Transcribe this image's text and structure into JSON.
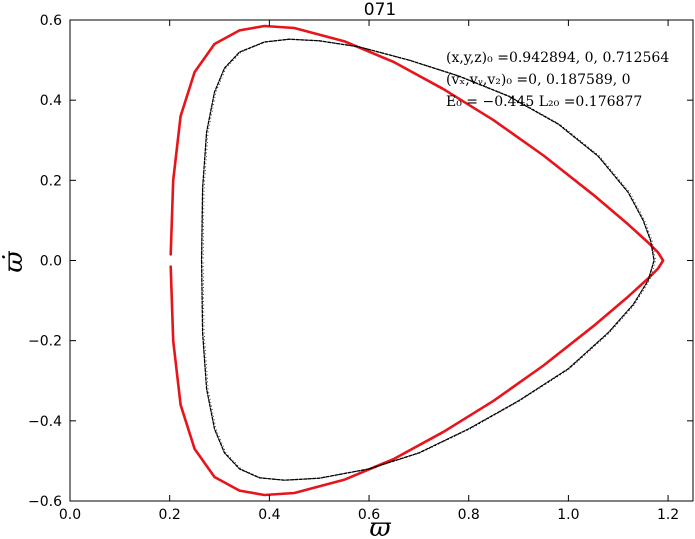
{
  "chart_data": {
    "type": "line",
    "title": "071",
    "xlabel": "ϖ",
    "ylabel": "ϖ̇",
    "xlim": [
      0.0,
      1.25
    ],
    "ylim": [
      -0.6,
      0.6
    ],
    "xticks": [
      0.0,
      0.2,
      0.4,
      0.6,
      0.8,
      1.0,
      1.2
    ],
    "xtick_labels": [
      "0.0",
      "0.2",
      "0.4",
      "0.6",
      "0.8",
      "1.0",
      "1.2"
    ],
    "yticks": [
      -0.6,
      -0.4,
      -0.2,
      0.0,
      0.2,
      0.4,
      0.6
    ],
    "ytick_labels": [
      "−0.6",
      "−0.4",
      "−0.2",
      "0.0",
      "0.2",
      "0.4",
      "0.6"
    ],
    "grid": false,
    "annotations": [
      "(x,y,z)₀ =0.942894, 0, 0.712564",
      "(vₓ,vᵧ,v₂)₀ =0, 0.187589, 0",
      "E₀ = −0.445  L₂₀ =0.176877"
    ],
    "series": [
      {
        "color": "#e8141b",
        "style": "solid-thick",
        "x": [
          0.202,
          0.207,
          0.222,
          0.25,
          0.29,
          0.34,
          0.39,
          0.45,
          0.55,
          0.65,
          0.75,
          0.85,
          0.95,
          1.05,
          1.12,
          1.16,
          1.18,
          1.19,
          1.18,
          1.16,
          1.12,
          1.05,
          0.95,
          0.85,
          0.75,
          0.65,
          0.55,
          0.45,
          0.39,
          0.34,
          0.29,
          0.25,
          0.222,
          0.207,
          0.202
        ],
        "y": [
          -0.015,
          -0.2,
          -0.36,
          -0.47,
          -0.54,
          -0.574,
          -0.585,
          -0.58,
          -0.547,
          -0.495,
          -0.427,
          -0.35,
          -0.262,
          -0.164,
          -0.09,
          -0.045,
          -0.02,
          0.0,
          0.02,
          0.045,
          0.09,
          0.164,
          0.262,
          0.35,
          0.427,
          0.495,
          0.547,
          0.58,
          0.585,
          0.574,
          0.54,
          0.47,
          0.36,
          0.2,
          0.015
        ]
      },
      {
        "color": "#000000",
        "style": "dotted-orbit",
        "x": [
          0.264,
          0.266,
          0.274,
          0.29,
          0.31,
          0.34,
          0.38,
          0.43,
          0.5,
          0.6,
          0.7,
          0.8,
          0.9,
          1.0,
          1.08,
          1.13,
          1.16,
          1.172,
          1.165,
          1.15,
          1.12,
          1.06,
          0.98,
          0.88,
          0.78,
          0.68,
          0.58,
          0.5,
          0.44,
          0.39,
          0.34,
          0.31,
          0.29,
          0.274,
          0.266,
          0.264
        ],
        "y": [
          0.0,
          -0.18,
          -0.32,
          -0.42,
          -0.48,
          -0.52,
          -0.542,
          -0.548,
          -0.543,
          -0.52,
          -0.48,
          -0.42,
          -0.35,
          -0.27,
          -0.18,
          -0.11,
          -0.05,
          0.0,
          0.05,
          0.1,
          0.17,
          0.26,
          0.34,
          0.41,
          0.46,
          0.5,
          0.533,
          0.548,
          0.552,
          0.545,
          0.52,
          0.48,
          0.42,
          0.32,
          0.18,
          0.0
        ]
      }
    ]
  }
}
